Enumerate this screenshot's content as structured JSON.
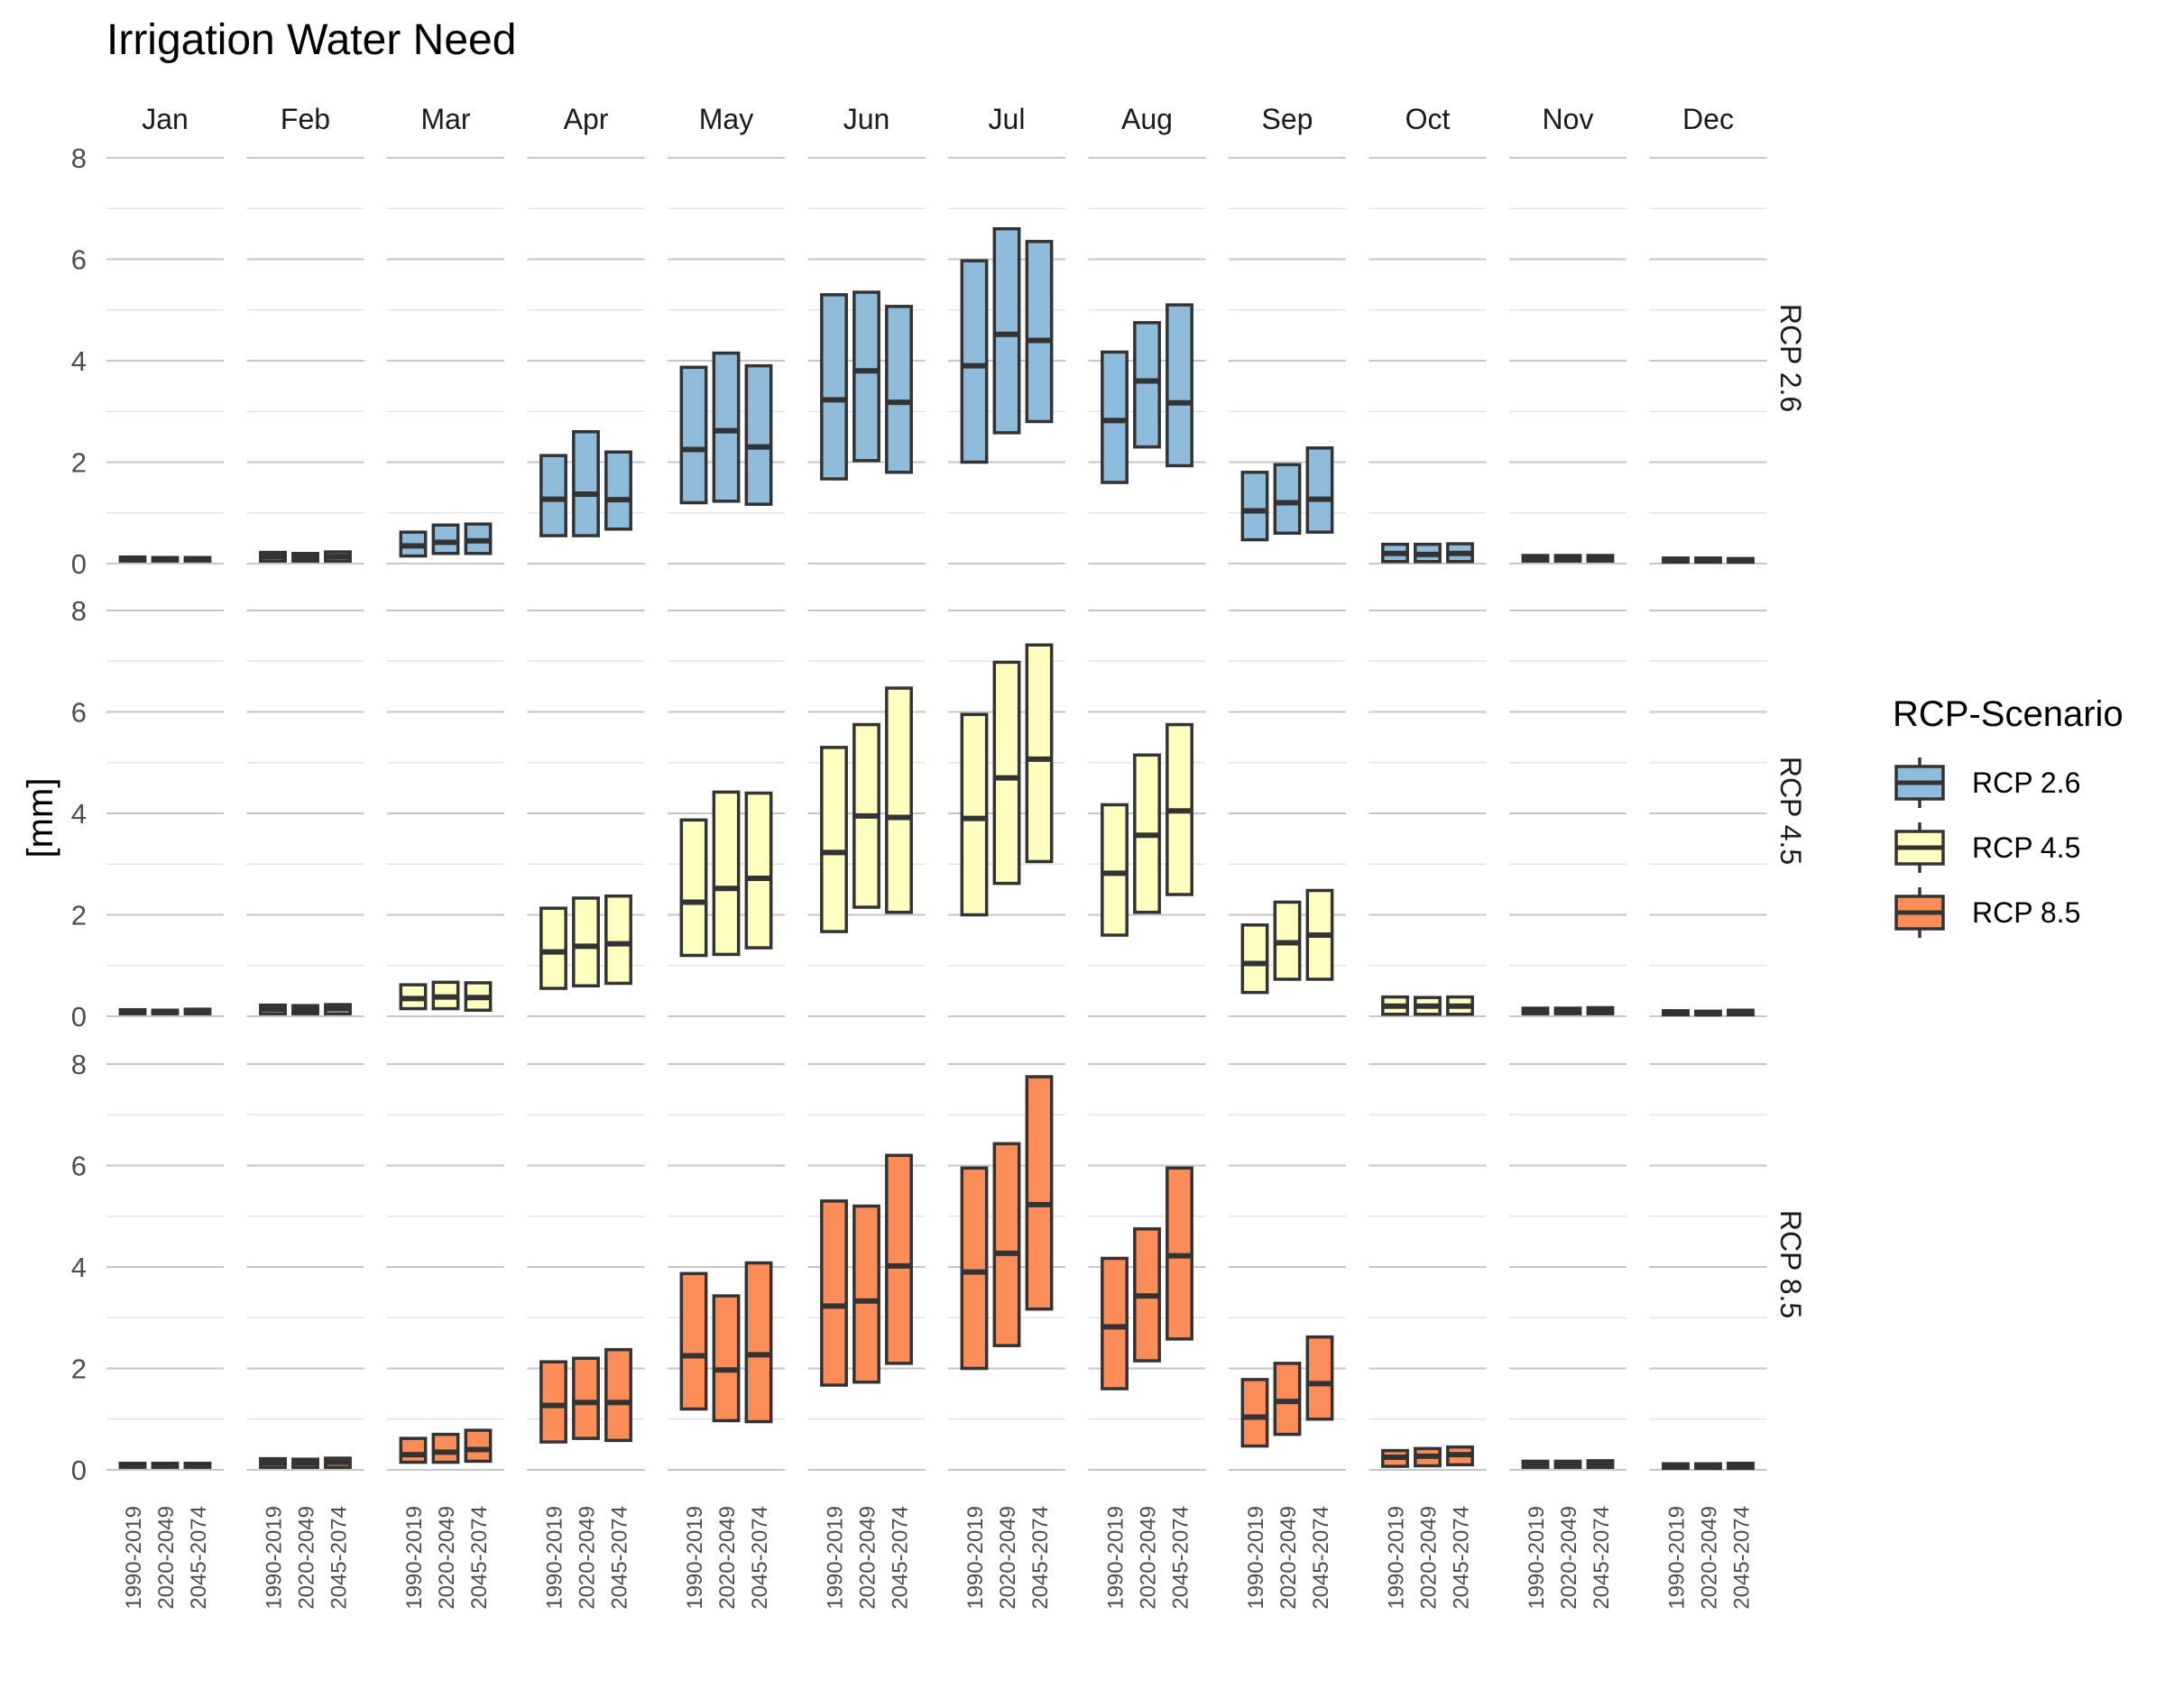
{
  "chart_data": {
    "type": "boxplot",
    "title": "Irrigation Water Need",
    "ylabel": "[mm]",
    "xlabel": "",
    "ylim": [
      0,
      8
    ],
    "yticks": [
      0,
      2,
      4,
      6,
      8
    ],
    "grid": true,
    "months": [
      "Jan",
      "Feb",
      "Mar",
      "Apr",
      "May",
      "Jun",
      "Jul",
      "Aug",
      "Sep",
      "Oct",
      "Nov",
      "Dec"
    ],
    "periods": [
      "1990-2019",
      "2020-2049",
      "2045-2074"
    ],
    "legend": {
      "title": "RCP-Scenario",
      "position": "right",
      "entries": [
        {
          "label": "RCP 2.6",
          "color": "#8fbcdb"
        },
        {
          "label": "RCP 4.5",
          "color": "#ffffbf"
        },
        {
          "label": "RCP 8.5",
          "color": "#fc8d59"
        }
      ]
    },
    "box_value_order": [
      "low",
      "median",
      "high"
    ],
    "series": [
      {
        "name": "RCP 2.6",
        "color": "#8fbcdb",
        "boxes": [
          [
            [
              0.05,
              0.09,
              0.13
            ],
            [
              0.05,
              0.08,
              0.12
            ],
            [
              0.05,
              0.08,
              0.12
            ]
          ],
          [
            [
              0.05,
              0.14,
              0.22
            ],
            [
              0.05,
              0.12,
              0.2
            ],
            [
              0.05,
              0.14,
              0.23
            ]
          ],
          [
            [
              0.15,
              0.35,
              0.62
            ],
            [
              0.2,
              0.42,
              0.76
            ],
            [
              0.2,
              0.45,
              0.78
            ]
          ],
          [
            [
              0.55,
              1.27,
              2.13
            ],
            [
              0.55,
              1.37,
              2.6
            ],
            [
              0.68,
              1.26,
              2.2
            ]
          ],
          [
            [
              1.2,
              2.25,
              3.87
            ],
            [
              1.23,
              2.62,
              4.15
            ],
            [
              1.17,
              2.3,
              3.9
            ]
          ],
          [
            [
              1.67,
              3.23,
              5.3
            ],
            [
              2.03,
              3.8,
              5.35
            ],
            [
              1.8,
              3.18,
              5.07
            ]
          ],
          [
            [
              2.0,
              3.9,
              5.97
            ],
            [
              2.58,
              4.52,
              6.6
            ],
            [
              2.8,
              4.4,
              6.35
            ]
          ],
          [
            [
              1.6,
              2.82,
              4.17
            ],
            [
              2.3,
              3.6,
              4.75
            ],
            [
              1.93,
              3.17,
              5.1
            ]
          ],
          [
            [
              0.47,
              1.04,
              1.8
            ],
            [
              0.6,
              1.2,
              1.95
            ],
            [
              0.62,
              1.27,
              2.28
            ]
          ],
          [
            [
              0.04,
              0.2,
              0.38
            ],
            [
              0.04,
              0.18,
              0.38
            ],
            [
              0.04,
              0.2,
              0.39
            ]
          ],
          [
            [
              0.05,
              0.1,
              0.16
            ],
            [
              0.05,
              0.1,
              0.16
            ],
            [
              0.05,
              0.1,
              0.16
            ]
          ],
          [
            [
              0.03,
              0.06,
              0.11
            ],
            [
              0.03,
              0.06,
              0.11
            ],
            [
              0.03,
              0.06,
              0.1
            ]
          ]
        ]
      },
      {
        "name": "RCP 4.5",
        "color": "#ffffbf",
        "boxes": [
          [
            [
              0.05,
              0.09,
              0.13
            ],
            [
              0.05,
              0.08,
              0.12
            ],
            [
              0.05,
              0.09,
              0.14
            ]
          ],
          [
            [
              0.05,
              0.14,
              0.22
            ],
            [
              0.05,
              0.13,
              0.21
            ],
            [
              0.05,
              0.15,
              0.23
            ]
          ],
          [
            [
              0.15,
              0.35,
              0.62
            ],
            [
              0.15,
              0.38,
              0.67
            ],
            [
              0.12,
              0.37,
              0.66
            ]
          ],
          [
            [
              0.55,
              1.27,
              2.13
            ],
            [
              0.6,
              1.38,
              2.33
            ],
            [
              0.65,
              1.43,
              2.37
            ]
          ],
          [
            [
              1.2,
              2.25,
              3.87
            ],
            [
              1.22,
              2.52,
              4.42
            ],
            [
              1.35,
              2.72,
              4.4
            ]
          ],
          [
            [
              1.67,
              3.23,
              5.3
            ],
            [
              2.15,
              3.95,
              5.75
            ],
            [
              2.05,
              3.92,
              6.47
            ]
          ],
          [
            [
              2.0,
              3.9,
              5.95
            ],
            [
              2.62,
              4.7,
              6.98
            ],
            [
              3.05,
              5.07,
              7.32
            ]
          ],
          [
            [
              1.6,
              2.82,
              4.17
            ],
            [
              2.05,
              3.57,
              5.15
            ],
            [
              2.4,
              4.05,
              5.75
            ]
          ],
          [
            [
              0.47,
              1.04,
              1.8
            ],
            [
              0.73,
              1.45,
              2.25
            ],
            [
              0.73,
              1.6,
              2.48
            ]
          ],
          [
            [
              0.04,
              0.2,
              0.38
            ],
            [
              0.04,
              0.2,
              0.37
            ],
            [
              0.04,
              0.2,
              0.38
            ]
          ],
          [
            [
              0.05,
              0.1,
              0.16
            ],
            [
              0.05,
              0.1,
              0.16
            ],
            [
              0.05,
              0.1,
              0.17
            ]
          ],
          [
            [
              0.03,
              0.06,
              0.11
            ],
            [
              0.03,
              0.05,
              0.1
            ],
            [
              0.03,
              0.07,
              0.12
            ]
          ]
        ]
      },
      {
        "name": "RCP 8.5",
        "color": "#fc8d59",
        "boxes": [
          [
            [
              0.05,
              0.09,
              0.13
            ],
            [
              0.05,
              0.09,
              0.13
            ],
            [
              0.05,
              0.09,
              0.13
            ]
          ],
          [
            [
              0.05,
              0.14,
              0.22
            ],
            [
              0.05,
              0.14,
              0.21
            ],
            [
              0.05,
              0.15,
              0.23
            ]
          ],
          [
            [
              0.15,
              0.3,
              0.62
            ],
            [
              0.15,
              0.35,
              0.7
            ],
            [
              0.17,
              0.4,
              0.78
            ]
          ],
          [
            [
              0.55,
              1.27,
              2.13
            ],
            [
              0.62,
              1.33,
              2.2
            ],
            [
              0.58,
              1.33,
              2.37
            ]
          ],
          [
            [
              1.2,
              2.25,
              3.87
            ],
            [
              0.97,
              1.97,
              3.43
            ],
            [
              0.95,
              2.27,
              4.08
            ]
          ],
          [
            [
              1.67,
              3.23,
              5.3
            ],
            [
              1.73,
              3.33,
              5.2
            ],
            [
              2.1,
              4.02,
              6.2
            ]
          ],
          [
            [
              2.0,
              3.9,
              5.95
            ],
            [
              2.45,
              4.27,
              6.43
            ],
            [
              3.17,
              5.23,
              7.75
            ]
          ],
          [
            [
              1.6,
              2.82,
              4.17
            ],
            [
              2.15,
              3.43,
              4.75
            ],
            [
              2.58,
              4.22,
              5.95
            ]
          ],
          [
            [
              0.47,
              1.04,
              1.78
            ],
            [
              0.7,
              1.35,
              2.1
            ],
            [
              1.0,
              1.7,
              2.62
            ]
          ],
          [
            [
              0.07,
              0.25,
              0.38
            ],
            [
              0.08,
              0.27,
              0.42
            ],
            [
              0.1,
              0.3,
              0.45
            ]
          ],
          [
            [
              0.05,
              0.1,
              0.17
            ],
            [
              0.05,
              0.1,
              0.17
            ],
            [
              0.05,
              0.11,
              0.18
            ]
          ],
          [
            [
              0.03,
              0.06,
              0.12
            ],
            [
              0.03,
              0.06,
              0.12
            ],
            [
              0.03,
              0.07,
              0.13
            ]
          ]
        ]
      }
    ]
  }
}
